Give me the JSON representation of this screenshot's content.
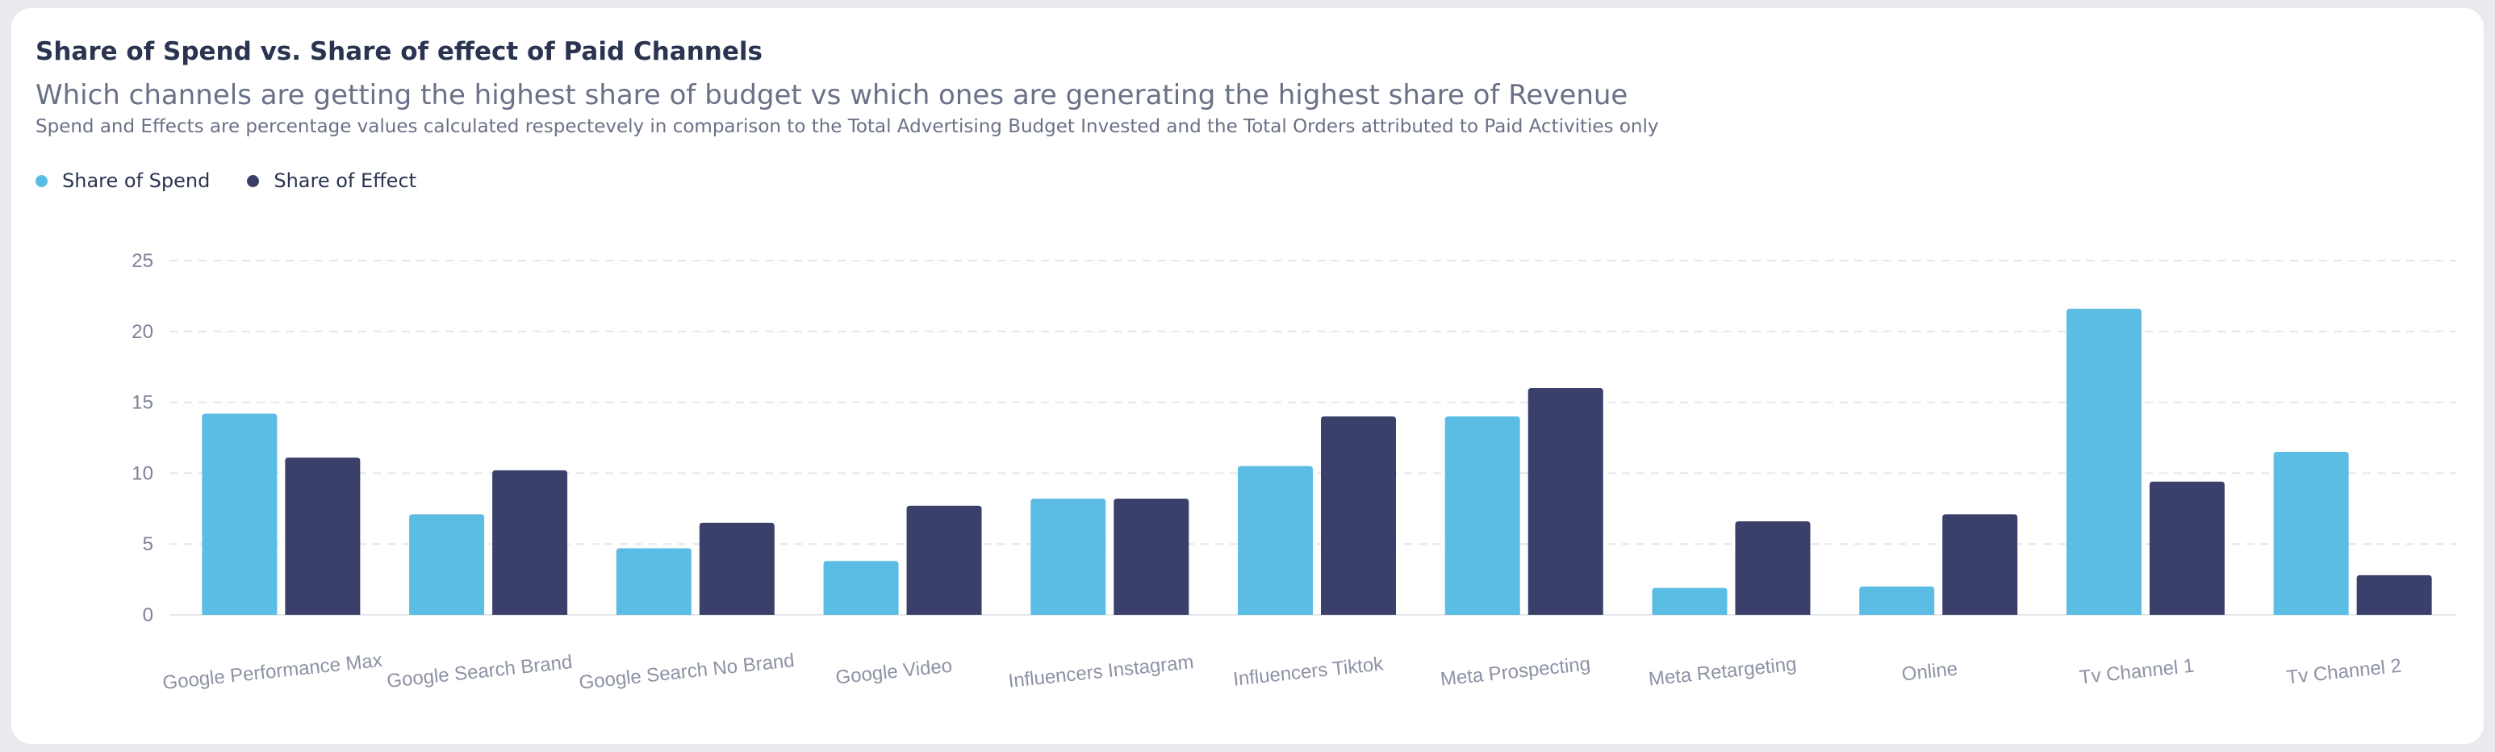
{
  "header": {
    "title": "Share of Spend vs. Share of effect of Paid Channels",
    "subtitle": "Which channels are getting the highest share of budget vs which ones are generating the highest share of Revenue",
    "note": "Spend and Effects are percentage values calculated respectevely in comparison to the Total Advertising Budget Invested and the Total Orders attributed to Paid Activities only"
  },
  "legend": [
    {
      "label": "Share of Spend",
      "color": "#5bbde4"
    },
    {
      "label": "Share of Effect",
      "color": "#3b406b"
    }
  ],
  "chart_data": {
    "type": "bar",
    "title": "Share of Spend vs. Share of effect of Paid Channels",
    "subtitle": "Which channels are getting the highest share of budget vs which ones are generating the highest share of Revenue",
    "xlabel": "",
    "ylabel": "",
    "ylim": [
      0,
      25
    ],
    "yticks": [
      0,
      5,
      10,
      15,
      20,
      25
    ],
    "grid": true,
    "legend_position": "top-left",
    "categories": [
      "Google Performance Max",
      "Google Search Brand",
      "Google Search No Brand",
      "Google Video",
      "Influencers Instagram",
      "Influencers Tiktok",
      "Meta Prospecting",
      "Meta Retargeting",
      "Online",
      "Tv Channel 1",
      "Tv Channel 2"
    ],
    "series": [
      {
        "name": "Share of Spend",
        "color": "#5bbde4",
        "values": [
          14.2,
          7.1,
          4.7,
          3.8,
          8.2,
          10.5,
          14.0,
          1.9,
          2.0,
          21.6,
          11.5
        ]
      },
      {
        "name": "Share of Effect",
        "color": "#3b406b",
        "values": [
          11.1,
          10.2,
          6.5,
          7.7,
          8.2,
          14.0,
          16.0,
          6.6,
          7.1,
          9.4,
          2.8
        ]
      }
    ]
  }
}
